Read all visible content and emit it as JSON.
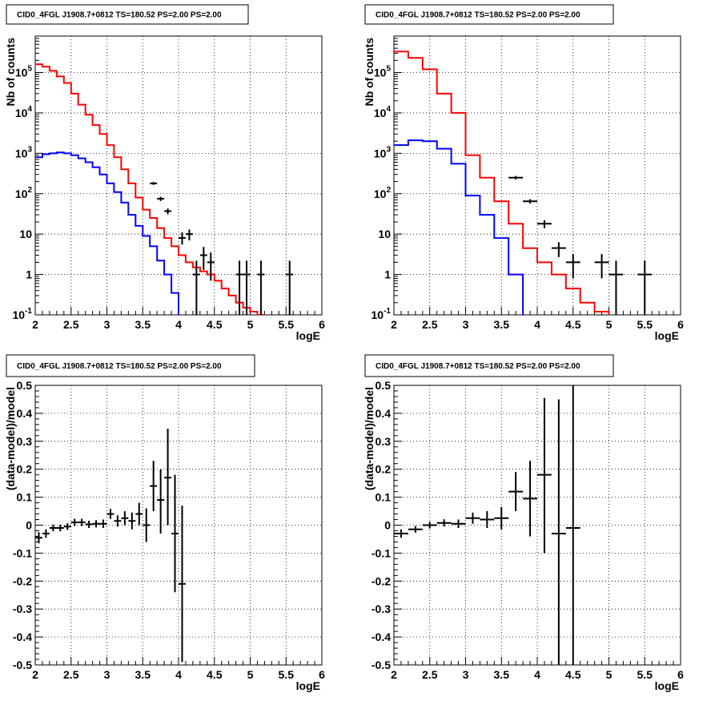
{
  "chart_data": [
    {
      "id": "top-left",
      "type": "histogram",
      "title": "CID0_4FGL J1908.7+0812 TS=180.52 PS=2.00 PS=2.00",
      "xlabel": "logE",
      "ylabel": "Nb of counts",
      "yscale": "log",
      "xlim": [
        2,
        6
      ],
      "ylim": [
        0.1,
        800000
      ],
      "x_ticks": [
        "2",
        "2.5",
        "3",
        "3.5",
        "4",
        "4.5",
        "5",
        "5.5",
        "6"
      ],
      "y_ticks": [
        {
          "base": "10",
          "exp": "-1",
          "value": 0.1
        },
        {
          "base": "1",
          "exp": "",
          "value": 1
        },
        {
          "base": "10",
          "exp": "",
          "value": 10
        },
        {
          "base": "10",
          "exp": "2",
          "value": 100
        },
        {
          "base": "10",
          "exp": "3",
          "value": 1000
        },
        {
          "base": "10",
          "exp": "4",
          "value": 10000
        },
        {
          "base": "10",
          "exp": "5",
          "value": 100000
        }
      ],
      "grid": true,
      "bin_width": 0.1,
      "series": [
        {
          "color": "#ff0000",
          "bin_start": 2.0,
          "values": [
            160000,
            140000,
            110000,
            80000,
            55000,
            30000,
            16000,
            9000,
            5000,
            3000,
            1600,
            800,
            400,
            180,
            80,
            40,
            25,
            14,
            8,
            5,
            3,
            2,
            1.5,
            1.2,
            1,
            0.7,
            0.45,
            0.3,
            0.2,
            0.15,
            0.12,
            0.1,
            0.09,
            0.09,
            0.09,
            0.09,
            0.09,
            0.09,
            0.09,
            0.09
          ]
        },
        {
          "color": "#0000ff",
          "bin_start": 2.0,
          "values": [
            800,
            950,
            1000,
            1050,
            1000,
            900,
            750,
            600,
            450,
            300,
            180,
            110,
            60,
            30,
            16,
            9,
            5,
            2.2,
            1,
            0.35,
            0.09,
            0.09,
            0.09,
            0.09,
            0.09,
            0.09,
            0.09,
            0.09,
            0.09,
            0.09,
            0.09,
            0.09,
            0.09,
            0.09,
            0.09,
            0.09,
            0.09,
            0.09,
            0.09,
            0.09
          ]
        }
      ],
      "points": [
        {
          "x": 3.65,
          "y": 180,
          "xerr": 0.05,
          "ylo": 165,
          "yhi": 195
        },
        {
          "x": 3.75,
          "y": 75,
          "xerr": 0.05,
          "ylo": 66,
          "yhi": 84
        },
        {
          "x": 3.85,
          "y": 37,
          "xerr": 0.05,
          "ylo": 31,
          "yhi": 43
        },
        {
          "x": 4.05,
          "y": 8,
          "xerr": 0.05,
          "ylo": 5.5,
          "yhi": 11
        },
        {
          "x": 4.15,
          "y": 10,
          "xerr": 0.05,
          "ylo": 7,
          "yhi": 13
        },
        {
          "x": 4.25,
          "y": 1,
          "xerr": 0.05,
          "ylo": 0.1,
          "yhi": 2.2
        },
        {
          "x": 4.35,
          "y": 3,
          "xerr": 0.05,
          "ylo": 1.3,
          "yhi": 4.8
        },
        {
          "x": 4.45,
          "y": 2,
          "xerr": 0.05,
          "ylo": 0.7,
          "yhi": 3.5
        },
        {
          "x": 4.85,
          "y": 1,
          "xerr": 0.05,
          "ylo": 0.1,
          "yhi": 2.2
        },
        {
          "x": 4.95,
          "y": 1,
          "xerr": 0.05,
          "ylo": 0.1,
          "yhi": 2.2
        },
        {
          "x": 5.15,
          "y": 1,
          "xerr": 0.05,
          "ylo": 0.1,
          "yhi": 2.2
        },
        {
          "x": 5.55,
          "y": 1,
          "xerr": 0.05,
          "ylo": 0.1,
          "yhi": 2.2
        }
      ]
    },
    {
      "id": "top-right",
      "type": "histogram",
      "title": "CID0_4FGL J1908.7+0812 TS=180.52 PS=2.00 PS=2.00",
      "xlabel": "logE",
      "ylabel": "Nb of counts",
      "yscale": "log",
      "xlim": [
        2,
        6
      ],
      "ylim": [
        0.1,
        800000
      ],
      "x_ticks": [
        "2",
        "2.5",
        "3",
        "3.5",
        "4",
        "4.5",
        "5",
        "5.5",
        "6"
      ],
      "y_ticks": [
        {
          "base": "10",
          "exp": "-1",
          "value": 0.1
        },
        {
          "base": "1",
          "exp": "",
          "value": 1
        },
        {
          "base": "10",
          "exp": "",
          "value": 10
        },
        {
          "base": "10",
          "exp": "2",
          "value": 100
        },
        {
          "base": "10",
          "exp": "3",
          "value": 1000
        },
        {
          "base": "10",
          "exp": "4",
          "value": 10000
        },
        {
          "base": "10",
          "exp": "5",
          "value": 100000
        }
      ],
      "grid": true,
      "bin_width": 0.2,
      "series": [
        {
          "color": "#ff0000",
          "bin_start": 2.0,
          "values": [
            330000,
            230000,
            120000,
            30000,
            10000,
            900,
            250,
            65,
            18,
            4.5,
            2,
            1,
            0.45,
            0.2,
            0.12,
            0.09,
            0.09,
            0.09,
            0.09,
            0.09
          ]
        },
        {
          "color": "#0000ff",
          "bin_start": 2.0,
          "values": [
            1600,
            2100,
            2000,
            1300,
            550,
            90,
            30,
            8,
            1,
            0.09,
            0.09,
            0.09,
            0.09,
            0.09,
            0.09,
            0.09,
            0.09,
            0.09,
            0.09,
            0.09
          ]
        }
      ],
      "points": [
        {
          "x": 3.7,
          "y": 250,
          "xerr": 0.1,
          "ylo": 225,
          "yhi": 275
        },
        {
          "x": 3.9,
          "y": 65,
          "xerr": 0.1,
          "ylo": 57,
          "yhi": 73
        },
        {
          "x": 4.1,
          "y": 18,
          "xerr": 0.1,
          "ylo": 14,
          "yhi": 22
        },
        {
          "x": 4.3,
          "y": 4.5,
          "xerr": 0.1,
          "ylo": 2.7,
          "yhi": 6.3
        },
        {
          "x": 4.5,
          "y": 2,
          "xerr": 0.1,
          "ylo": 0.8,
          "yhi": 3.2
        },
        {
          "x": 4.9,
          "y": 2,
          "xerr": 0.1,
          "ylo": 0.8,
          "yhi": 3.2
        },
        {
          "x": 5.1,
          "y": 1,
          "xerr": 0.1,
          "ylo": 0.1,
          "yhi": 2.2
        },
        {
          "x": 5.5,
          "y": 1,
          "xerr": 0.1,
          "ylo": 0.1,
          "yhi": 2.2
        }
      ]
    },
    {
      "id": "bottom-left",
      "type": "scatter",
      "title": "CID0_4FGL J1908.7+0812 TS=180.52 PS=2.00 PS=2.00",
      "xlabel": "logE",
      "ylabel": "(data-model)/model",
      "yscale": "linear",
      "xlim": [
        2,
        6
      ],
      "ylim": [
        -0.5,
        0.5
      ],
      "x_ticks": [
        "2",
        "2.5",
        "3",
        "3.5",
        "4",
        "4.5",
        "5",
        "5.5",
        "6"
      ],
      "y_ticks": [
        "-0.5",
        "-0.4",
        "-0.3",
        "-0.2",
        "-0.1",
        "0",
        "0.1",
        "0.2",
        "0.3",
        "0.4",
        "0.5"
      ],
      "grid": true,
      "points": [
        {
          "x": 2.05,
          "y": -0.045,
          "xerr": 0.05,
          "ylo": -0.065,
          "yhi": -0.025
        },
        {
          "x": 2.15,
          "y": -0.03,
          "xerr": 0.05,
          "ylo": -0.045,
          "yhi": -0.015
        },
        {
          "x": 2.25,
          "y": -0.01,
          "xerr": 0.05,
          "ylo": -0.022,
          "yhi": 0.002
        },
        {
          "x": 2.35,
          "y": -0.01,
          "xerr": 0.05,
          "ylo": -0.022,
          "yhi": 0.002
        },
        {
          "x": 2.45,
          "y": -0.005,
          "xerr": 0.05,
          "ylo": -0.017,
          "yhi": 0.007
        },
        {
          "x": 2.55,
          "y": 0.01,
          "xerr": 0.05,
          "ylo": -0.003,
          "yhi": 0.023
        },
        {
          "x": 2.65,
          "y": 0.01,
          "xerr": 0.05,
          "ylo": -0.003,
          "yhi": 0.023
        },
        {
          "x": 2.75,
          "y": 0.003,
          "xerr": 0.05,
          "ylo": -0.01,
          "yhi": 0.016
        },
        {
          "x": 2.85,
          "y": 0.005,
          "xerr": 0.05,
          "ylo": -0.008,
          "yhi": 0.018
        },
        {
          "x": 2.95,
          "y": 0.005,
          "xerr": 0.05,
          "ylo": -0.01,
          "yhi": 0.02
        },
        {
          "x": 3.05,
          "y": 0.04,
          "xerr": 0.05,
          "ylo": 0.022,
          "yhi": 0.058
        },
        {
          "x": 3.15,
          "y": 0.015,
          "xerr": 0.05,
          "ylo": -0.005,
          "yhi": 0.035
        },
        {
          "x": 3.25,
          "y": 0.025,
          "xerr": 0.05,
          "ylo": 0.0,
          "yhi": 0.05
        },
        {
          "x": 3.35,
          "y": 0.015,
          "xerr": 0.05,
          "ylo": -0.015,
          "yhi": 0.045
        },
        {
          "x": 3.45,
          "y": 0.04,
          "xerr": 0.05,
          "ylo": 0.0,
          "yhi": 0.08
        },
        {
          "x": 3.55,
          "y": 0.0,
          "xerr": 0.05,
          "ylo": -0.06,
          "yhi": 0.06
        },
        {
          "x": 3.65,
          "y": 0.14,
          "xerr": 0.05,
          "ylo": 0.05,
          "yhi": 0.23
        },
        {
          "x": 3.75,
          "y": 0.09,
          "xerr": 0.05,
          "ylo": -0.03,
          "yhi": 0.2
        },
        {
          "x": 3.85,
          "y": 0.17,
          "xerr": 0.05,
          "ylo": 0.0,
          "yhi": 0.345
        },
        {
          "x": 3.95,
          "y": -0.03,
          "xerr": 0.05,
          "ylo": -0.24,
          "yhi": 0.18
        },
        {
          "x": 4.05,
          "y": -0.21,
          "xerr": 0.05,
          "ylo": -0.49,
          "yhi": 0.07
        }
      ]
    },
    {
      "id": "bottom-right",
      "type": "scatter",
      "title": "CID0_4FGL J1908.7+0812 TS=180.52 PS=2.00 PS=2.00",
      "xlabel": "logE",
      "ylabel": "(data-model)/model",
      "yscale": "linear",
      "xlim": [
        2,
        6
      ],
      "ylim": [
        -0.5,
        0.5
      ],
      "x_ticks": [
        "2",
        "2.5",
        "3",
        "3.5",
        "4",
        "4.5",
        "5",
        "5.5",
        "6"
      ],
      "y_ticks": [
        "-0.5",
        "-0.4",
        "-0.3",
        "-0.2",
        "-0.1",
        "0",
        "0.1",
        "0.2",
        "0.3",
        "0.4",
        "0.5"
      ],
      "grid": true,
      "points": [
        {
          "x": 2.1,
          "y": -0.03,
          "xerr": 0.1,
          "ylo": -0.045,
          "yhi": -0.015
        },
        {
          "x": 2.3,
          "y": -0.015,
          "xerr": 0.1,
          "ylo": -0.027,
          "yhi": -0.003
        },
        {
          "x": 2.5,
          "y": 0.0,
          "xerr": 0.1,
          "ylo": -0.012,
          "yhi": 0.012
        },
        {
          "x": 2.7,
          "y": 0.008,
          "xerr": 0.1,
          "ylo": -0.005,
          "yhi": 0.021
        },
        {
          "x": 2.9,
          "y": 0.005,
          "xerr": 0.1,
          "ylo": -0.01,
          "yhi": 0.02
        },
        {
          "x": 3.1,
          "y": 0.025,
          "xerr": 0.1,
          "ylo": 0.005,
          "yhi": 0.045
        },
        {
          "x": 3.3,
          "y": 0.02,
          "xerr": 0.1,
          "ylo": -0.01,
          "yhi": 0.05
        },
        {
          "x": 3.5,
          "y": 0.025,
          "xerr": 0.1,
          "ylo": -0.015,
          "yhi": 0.065
        },
        {
          "x": 3.7,
          "y": 0.12,
          "xerr": 0.1,
          "ylo": 0.05,
          "yhi": 0.19
        },
        {
          "x": 3.9,
          "y": 0.095,
          "xerr": 0.1,
          "ylo": -0.04,
          "yhi": 0.23
        },
        {
          "x": 4.1,
          "y": 0.18,
          "xerr": 0.1,
          "ylo": -0.1,
          "yhi": 0.455
        },
        {
          "x": 4.3,
          "y": -0.03,
          "xerr": 0.1,
          "ylo": -0.5,
          "yhi": 0.45
        },
        {
          "x": 4.5,
          "y": -0.01,
          "xerr": 0.1,
          "ylo": -0.5,
          "yhi": 0.5
        }
      ]
    }
  ]
}
